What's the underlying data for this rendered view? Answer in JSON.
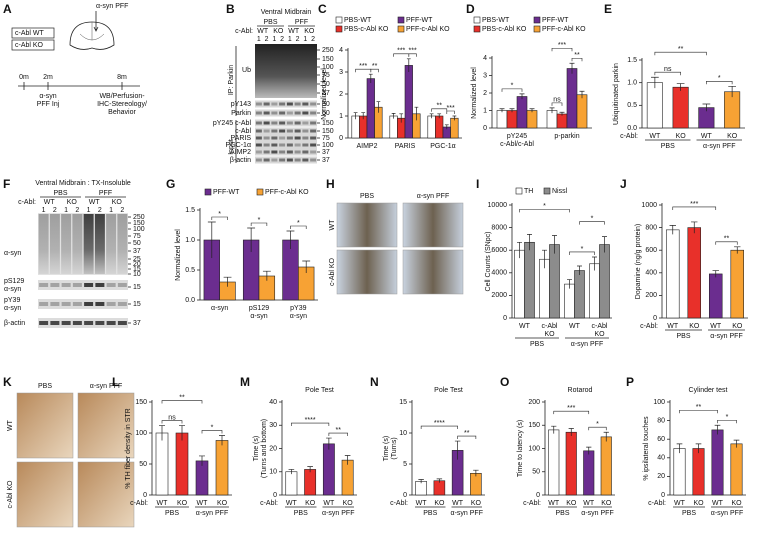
{
  "A": {
    "letter": "A",
    "groups": [
      "c-Abl WT",
      "c-Abl KO"
    ],
    "injection": "α-syn PFF",
    "times": [
      "0m",
      "2m",
      "8m"
    ],
    "events": [
      [
        "α-syn",
        "PFF Inj"
      ],
      [
        "WB/Perfusion-",
        "IHC-Stereology/",
        "Behavior"
      ]
    ]
  },
  "B": {
    "letter": "B",
    "header": "Ventral Midbrain",
    "conditions": [
      "PBS",
      "PFF"
    ],
    "genotype_label": "c-Abl:",
    "genotypes": [
      "WT",
      "KO",
      "WT",
      "KO"
    ],
    "lanes": [
      "1",
      "2",
      "1",
      "2",
      "1",
      "2",
      "1",
      "2"
    ],
    "ip_label": "IP: Parkin",
    "input_label": "Input",
    "rows": [
      "Ub",
      "pY143",
      "Parkin",
      "pY245 c-Abl",
      "c-Abl",
      "PARIS",
      "PGC-1α",
      "AIMP2",
      "β-actin"
    ],
    "markers": [
      "250",
      "150",
      "100",
      "75",
      "50",
      "37",
      "50",
      "50",
      "150",
      "150",
      "75",
      "100",
      "37",
      "37"
    ]
  },
  "F": {
    "letter": "F",
    "header": "Ventral Midbrain : TX-Insoluble",
    "conditions": [
      "PBS",
      "PFF"
    ],
    "genotype_label": "c-Abl:",
    "genotypes": [
      "WT",
      "KO",
      "WT",
      "KO"
    ],
    "lanes": [
      "1",
      "2",
      "1",
      "2",
      "1",
      "2",
      "1",
      "2"
    ],
    "rows": [
      [
        "α-syn"
      ],
      [
        "pS129",
        "α-syn"
      ],
      [
        "pY39",
        "α-syn"
      ],
      [
        "β-actin"
      ]
    ],
    "markers": [
      "250",
      "150",
      "100",
      "75",
      "50",
      "37",
      "25",
      "20",
      "15",
      "10",
      "15",
      "15",
      "37"
    ]
  },
  "H": {
    "letter": "H",
    "columns": [
      "PBS",
      "α-syn PFF"
    ],
    "rows": [
      "WT",
      "c-Abl KO"
    ]
  },
  "K": {
    "letter": "K",
    "columns": [
      "PBS",
      "α-syn PFF"
    ],
    "rows": [
      "WT",
      "c-Abl KO"
    ]
  },
  "chart_data": [
    {
      "type": "bar",
      "letter": "C",
      "ylabel": [
        "Normalized level"
      ],
      "ylim": [
        0,
        4
      ],
      "yticks": [
        0,
        1,
        2,
        3,
        4
      ],
      "legend": true,
      "categories": [
        "AIMP2",
        "PARIS",
        "PGC-1α"
      ],
      "series": [
        {
          "name": "PBS-WT",
          "color": "#ffffff",
          "values": [
            1,
            1,
            1
          ],
          "errors": [
            0.15,
            0.12,
            0.1
          ]
        },
        {
          "name": "PBS-c-Abl KO",
          "color": "#e8302a",
          "values": [
            1.0,
            0.9,
            1.0
          ],
          "errors": [
            0.15,
            0.2,
            0.1
          ]
        },
        {
          "name": "PFF-WT",
          "color": "#6b2d8f",
          "values": [
            2.7,
            3.3,
            0.5
          ],
          "errors": [
            0.2,
            0.3,
            0.1
          ]
        },
        {
          "name": "PFF-c-Abl KO",
          "color": "#f7a234",
          "values": [
            1.4,
            1.1,
            0.9
          ],
          "errors": [
            0.25,
            0.3,
            0.1
          ]
        }
      ],
      "significance": [
        "***",
        "**",
        "***",
        "***",
        "**",
        "***"
      ]
    },
    {
      "type": "bar",
      "letter": "D",
      "ylabel": [
        "Normalized level"
      ],
      "ylim": [
        0,
        4
      ],
      "yticks": [
        0,
        1,
        2,
        3,
        4
      ],
      "legend": true,
      "categories": [
        [
          "pY245",
          "c-Abl/c-Abl"
        ],
        [
          "p-parkin"
        ]
      ],
      "series": [
        {
          "name": "PBS-WT",
          "color": "#ffffff",
          "values": [
            1,
            1
          ],
          "errors": [
            0.1,
            0.15
          ]
        },
        {
          "name": "PBS-c-Abl KO",
          "color": "#e8302a",
          "values": [
            1.0,
            0.8
          ],
          "errors": [
            0.1,
            0.1
          ]
        },
        {
          "name": "PFF-WT",
          "color": "#6b2d8f",
          "values": [
            1.8,
            3.4
          ],
          "errors": [
            0.15,
            0.3
          ]
        },
        {
          "name": "PFF-c-Abl KO",
          "color": "#f7a234",
          "values": [
            1.0,
            1.9
          ],
          "errors": [
            0.1,
            0.2
          ]
        }
      ],
      "significance": [
        "*",
        "ns",
        "***",
        "**"
      ]
    },
    {
      "type": "bar",
      "letter": "E",
      "ylabel": [
        "Ubiquitinated parkin"
      ],
      "ylim": [
        0,
        1.5
      ],
      "yticks": [
        {
          "value": 0,
          "label": "0.0"
        },
        0.5,
        {
          "value": 1,
          "label": "1.0"
        },
        1.5
      ],
      "x_prefix": "c-Abl:",
      "categories": [
        "WT",
        "KO",
        "WT",
        "KO"
      ],
      "groups": [
        "PBS",
        "α-syn PFF"
      ],
      "colors": [
        "#ffffff",
        "#e8302a",
        "#6b2d8f",
        "#f7a234"
      ],
      "values": [
        1.0,
        0.9,
        0.45,
        0.8
      ],
      "errors": [
        0.12,
        0.08,
        0.08,
        0.12
      ],
      "significance": [
        "ns",
        "**",
        "*"
      ]
    },
    {
      "type": "bar",
      "letter": "G",
      "ylabel": [
        "Normalized level"
      ],
      "ylim": [
        0,
        1.5
      ],
      "yticks": [
        {
          "value": 0,
          "label": "0.0"
        },
        0.5,
        {
          "value": 1,
          "label": "1.0"
        },
        1.5
      ],
      "legend": true,
      "categories": [
        [
          "α-syn"
        ],
        [
          "pS129",
          "α-syn"
        ],
        [
          "pY39",
          "α-syn"
        ]
      ],
      "series": [
        {
          "name": "PFF-WT",
          "color": "#6b2d8f",
          "values": [
            1.0,
            1.0,
            1.0
          ],
          "errors": [
            0.3,
            0.2,
            0.15
          ]
        },
        {
          "name": "PFF-c-Abl KO",
          "color": "#f7a234",
          "values": [
            0.3,
            0.4,
            0.55
          ],
          "errors": [
            0.08,
            0.08,
            0.1
          ]
        }
      ],
      "significance": [
        "*",
        "*",
        "*"
      ]
    },
    {
      "type": "bar",
      "letter": "I",
      "ylabel": [
        "Cell Counts (SNpc)"
      ],
      "ylim": [
        0,
        10000
      ],
      "yticks": [
        0,
        2000,
        4000,
        6000,
        8000,
        10000
      ],
      "legend": true,
      "categories": [
        [
          "WT"
        ],
        [
          "c-Abl",
          "KO"
        ],
        [
          "WT"
        ],
        [
          "c-Abl",
          "KO"
        ]
      ],
      "groups": [
        "PBS",
        "α-syn PFF"
      ],
      "series": [
        {
          "name": "TH",
          "color": "#ffffff",
          "values": [
            6000,
            5200,
            3000,
            4800
          ],
          "errors": [
            700,
            800,
            400,
            600
          ]
        },
        {
          "name": "Nissl",
          "color": "#8c8c8c",
          "values": [
            6700,
            6500,
            4200,
            6500
          ],
          "errors": [
            700,
            800,
            400,
            700
          ]
        }
      ],
      "significance": [
        "*",
        "*",
        "*"
      ]
    },
    {
      "type": "bar",
      "letter": "J",
      "ylabel": [
        "Dopamine (ng/g protein)"
      ],
      "ylim": [
        0,
        1000
      ],
      "yticks": [
        0,
        200,
        400,
        600,
        800,
        1000
      ],
      "x_prefix": "c-Abl:",
      "categories": [
        "WT",
        "KO",
        "WT",
        "KO"
      ],
      "groups": [
        "PBS",
        "α-syn PFF"
      ],
      "colors": [
        "#ffffff",
        "#e8302a",
        "#6b2d8f",
        "#f7a234"
      ],
      "values": [
        780,
        800,
        390,
        600
      ],
      "errors": [
        40,
        50,
        30,
        30
      ],
      "significance": [
        "***",
        "**"
      ]
    },
    {
      "type": "bar",
      "letter": "L",
      "ylabel": [
        "% TH fiber density in STR"
      ],
      "ylim": [
        0,
        150
      ],
      "yticks": [
        0,
        50,
        100,
        150
      ],
      "x_prefix": "c-Abl:",
      "categories": [
        "WT",
        "KO",
        "WT",
        "KO"
      ],
      "groups": [
        "PBS",
        "α-syn PFF"
      ],
      "colors": [
        "#ffffff",
        "#e8302a",
        "#6b2d8f",
        "#f7a234"
      ],
      "values": [
        100,
        100,
        55,
        88
      ],
      "errors": [
        12,
        12,
        8,
        8
      ],
      "significance": [
        "ns",
        "**",
        "*"
      ]
    },
    {
      "type": "bar",
      "letter": "M",
      "title": "Pole Test",
      "ylabel": [
        "Time (s)",
        "(Turns and bottom)"
      ],
      "ylim": [
        0,
        40
      ],
      "yticks": [
        0,
        10,
        20,
        30,
        40
      ],
      "x_prefix": "c-Abl:",
      "categories": [
        "WT",
        "KO",
        "WT",
        "KO"
      ],
      "groups": [
        "PBS",
        "α-syn PFF"
      ],
      "colors": [
        "#ffffff",
        "#e8302a",
        "#6b2d8f",
        "#f7a234"
      ],
      "values": [
        10,
        11,
        22,
        15
      ],
      "errors": [
        1,
        1.2,
        2.5,
        2
      ],
      "significance": [
        "****",
        "**"
      ]
    },
    {
      "type": "bar",
      "letter": "N",
      "title": "Pole Test",
      "ylabel": [
        "Time (s)",
        "(Turns)"
      ],
      "ylim": [
        0,
        15
      ],
      "yticks": [
        0,
        5,
        10,
        15
      ],
      "x_prefix": "c-Abl:",
      "categories": [
        "WT",
        "KO",
        "WT",
        "KO"
      ],
      "groups": [
        "PBS",
        "α-syn PFF"
      ],
      "colors": [
        "#ffffff",
        "#e8302a",
        "#6b2d8f",
        "#f7a234"
      ],
      "values": [
        2.2,
        2.3,
        7.2,
        3.5
      ],
      "errors": [
        0.3,
        0.3,
        1.5,
        0.5
      ],
      "significance": [
        "****",
        "**"
      ]
    },
    {
      "type": "bar",
      "letter": "O",
      "title": "Rotarod",
      "ylabel": [
        "Time to latency (s)"
      ],
      "ylim": [
        0,
        200
      ],
      "yticks": [
        0,
        50,
        100,
        150,
        200
      ],
      "x_prefix": "c-Abl:",
      "categories": [
        "WT",
        "KO",
        "WT",
        "KO"
      ],
      "groups": [
        "PBS",
        "α-syn PFF"
      ],
      "colors": [
        "#ffffff",
        "#e8302a",
        "#6b2d8f",
        "#f7a234"
      ],
      "values": [
        140,
        135,
        95,
        125
      ],
      "errors": [
        8,
        8,
        8,
        10
      ],
      "significance": [
        "***",
        "*"
      ]
    },
    {
      "type": "bar",
      "letter": "P",
      "title": "Cylinder test",
      "ylabel": [
        "% ipsilateral touches"
      ],
      "ylim": [
        0,
        100
      ],
      "yticks": [
        0,
        20,
        40,
        60,
        80,
        100
      ],
      "x_prefix": "c-Abl:",
      "categories": [
        "WT",
        "KO",
        "WT",
        "KO"
      ],
      "groups": [
        "PBS",
        "α-syn PFF"
      ],
      "colors": [
        "#ffffff",
        "#e8302a",
        "#6b2d8f",
        "#f7a234"
      ],
      "values": [
        50,
        50,
        70,
        55
      ],
      "errors": [
        5,
        5,
        5,
        4
      ],
      "significance": [
        "**",
        "*"
      ]
    }
  ]
}
